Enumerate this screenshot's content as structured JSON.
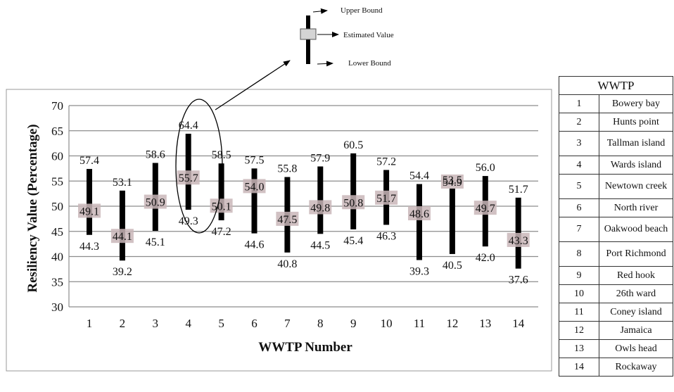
{
  "chart_data": {
    "type": "range",
    "xlabel": "WWTP Number",
    "ylabel": "Resiliency Value (Percentage)",
    "ylim": [
      30,
      70
    ],
    "yticks": [
      30,
      35,
      40,
      45,
      50,
      55,
      60,
      65,
      70
    ],
    "grid": true,
    "x": [
      1,
      2,
      3,
      4,
      5,
      6,
      7,
      8,
      9,
      10,
      11,
      12,
      13,
      14
    ],
    "estimated": [
      49.1,
      44.1,
      50.9,
      55.7,
      50.1,
      54.0,
      47.5,
      49.8,
      50.8,
      51.7,
      48.6,
      54.9,
      49.7,
      43.3
    ],
    "upper": [
      57.4,
      53.1,
      58.6,
      64.4,
      58.5,
      57.5,
      55.8,
      57.9,
      60.5,
      57.2,
      54.4,
      53.5,
      56.0,
      51.7
    ],
    "lower": [
      44.3,
      39.2,
      45.1,
      49.3,
      47.2,
      44.6,
      40.8,
      44.5,
      45.4,
      46.3,
      39.3,
      40.5,
      42.0,
      37.6
    ],
    "highlighted_x": 4
  },
  "legend": {
    "upper": "Upper Bound",
    "estimated": "Estimated Value",
    "lower": "Lower Bound"
  },
  "table": {
    "header": "WWTP",
    "rows": [
      {
        "num": "1",
        "name": "Bowery bay"
      },
      {
        "num": "2",
        "name": "Hunts point"
      },
      {
        "num": "3",
        "name": "Tallman island"
      },
      {
        "num": "4",
        "name": "Wards island"
      },
      {
        "num": "5",
        "name": "Newtown creek"
      },
      {
        "num": "6",
        "name": "North river"
      },
      {
        "num": "7",
        "name": "Oakwood beach"
      },
      {
        "num": "8",
        "name": "Port Richmond"
      },
      {
        "num": "9",
        "name": "Red hook"
      },
      {
        "num": "10",
        "name": "26th ward"
      },
      {
        "num": "11",
        "name": "Coney island"
      },
      {
        "num": "12",
        "name": "Jamaica"
      },
      {
        "num": "13",
        "name": "Owls head"
      },
      {
        "num": "14",
        "name": "Rockaway"
      }
    ]
  }
}
